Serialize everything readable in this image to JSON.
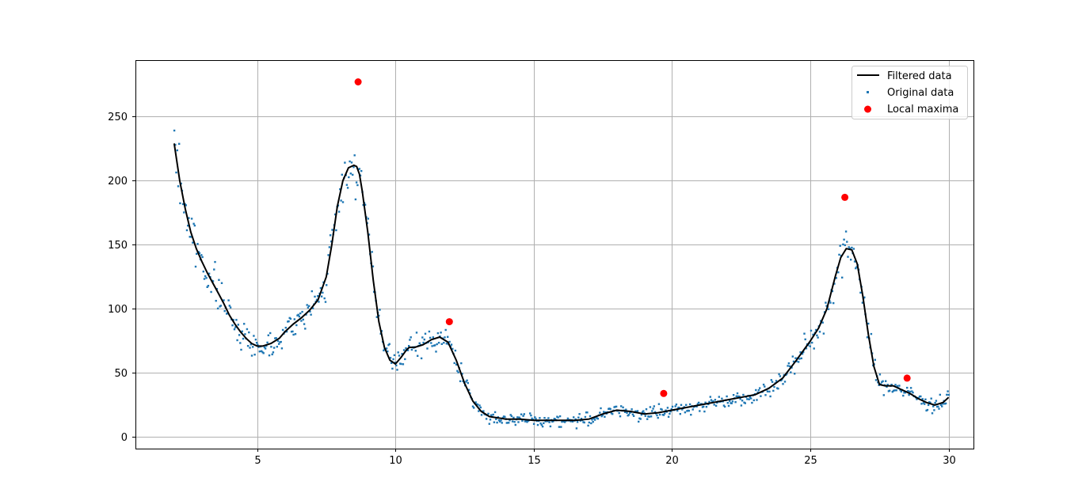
{
  "chart_data": {
    "type": "line",
    "title": "",
    "xlabel": "",
    "ylabel": "",
    "xlim": [
      0.6,
      30.9
    ],
    "ylim": [
      -9,
      294
    ],
    "x_ticks": [
      5,
      10,
      15,
      20,
      25,
      30
    ],
    "y_ticks": [
      0,
      50,
      100,
      150,
      200,
      250
    ],
    "grid": true,
    "legend_position": "top-right",
    "legend": [
      "Filtered data",
      "Original data",
      "Local maxima"
    ],
    "colors": {
      "filtered": "#000000",
      "original": "#1f77b4",
      "maxima": "#ff0000",
      "grid": "#b0b0b0"
    },
    "series": [
      {
        "name": "Filtered data",
        "style": "line",
        "x": [
          2.0,
          2.2,
          2.4,
          2.6,
          2.8,
          3.0,
          3.2,
          3.4,
          3.6,
          3.8,
          4.0,
          4.2,
          4.4,
          4.6,
          4.8,
          5.0,
          5.2,
          5.5,
          5.8,
          6.0,
          6.3,
          6.6,
          6.9,
          7.2,
          7.5,
          7.7,
          7.9,
          8.1,
          8.3,
          8.5,
          8.6,
          8.7,
          8.8,
          9.0,
          9.2,
          9.4,
          9.6,
          9.8,
          10.0,
          10.2,
          10.4,
          10.5,
          10.7,
          11.0,
          11.3,
          11.6,
          11.9,
          12.2,
          12.5,
          12.8,
          13.1,
          13.4,
          13.7,
          14.0,
          14.5,
          15.0,
          15.5,
          16.0,
          16.5,
          17.0,
          17.5,
          18.0,
          18.5,
          19.0,
          19.5,
          20.0,
          20.5,
          21.0,
          21.5,
          22.0,
          22.5,
          23.0,
          23.5,
          24.0,
          24.5,
          25.0,
          25.3,
          25.6,
          25.9,
          26.1,
          26.3,
          26.5,
          26.7,
          26.9,
          27.1,
          27.3,
          27.5,
          27.7,
          28.0,
          28.3,
          28.6,
          28.9,
          29.2,
          29.5,
          29.8,
          30.0
        ],
        "values": [
          229,
          200,
          178,
          160,
          147,
          137,
          128,
          120,
          112,
          104,
          95,
          88,
          82,
          77,
          73,
          71,
          71,
          73,
          77,
          82,
          88,
          93,
          99,
          107,
          125,
          150,
          180,
          200,
          210,
          212,
          211,
          205,
          192,
          160,
          122,
          90,
          70,
          60,
          57,
          62,
          68,
          70,
          70,
          72,
          76,
          78,
          74,
          60,
          42,
          28,
          20,
          16,
          15,
          14,
          14,
          13,
          13,
          13,
          13,
          14,
          18,
          21,
          20,
          18,
          19,
          21,
          23,
          25,
          27,
          29,
          31,
          33,
          38,
          46,
          60,
          75,
          85,
          100,
          125,
          140,
          147,
          146,
          135,
          110,
          80,
          55,
          41,
          40,
          40,
          37,
          34,
          30,
          27,
          25,
          27,
          31
        ]
      },
      {
        "name": "Original data",
        "style": "scatter",
        "generated_noise_around_filtered": true,
        "n_points": 800,
        "x_range": [
          2.0,
          30.0
        ],
        "noise_seed": 7
      },
      {
        "name": "Local maxima",
        "style": "scatter",
        "x": [
          8.65,
          11.95,
          19.7,
          26.25,
          28.5
        ],
        "values": [
          277,
          90,
          34,
          187,
          46
        ]
      }
    ]
  }
}
